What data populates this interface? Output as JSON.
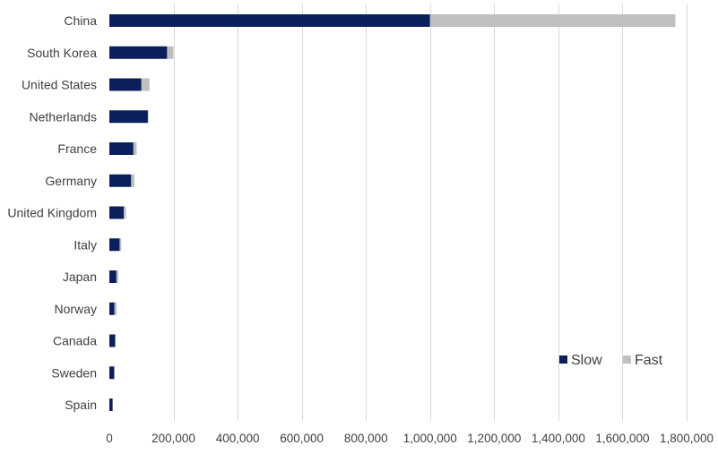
{
  "chart_data": {
    "type": "bar",
    "orientation": "horizontal",
    "stacked": true,
    "categories": [
      "China",
      "South Korea",
      "United States",
      "Netherlands",
      "France",
      "Germany",
      "United Kingdom",
      "Italy",
      "Japan",
      "Norway",
      "Canada",
      "Sweden",
      "Spain"
    ],
    "series": [
      {
        "name": "Slow",
        "color": "#0b1f5b",
        "values": [
          1000000,
          180000,
          100000,
          120000,
          75000,
          68000,
          45000,
          32000,
          22000,
          16000,
          18000,
          15000,
          10000
        ]
      },
      {
        "name": "Fast",
        "color": "#bfbfbf",
        "values": [
          765000,
          20000,
          25000,
          2000,
          10000,
          10000,
          7000,
          5000,
          6000,
          7000,
          2000,
          2000,
          1000
        ]
      }
    ],
    "xlim": [
      0,
      1800000
    ],
    "xticks": [
      0,
      200000,
      400000,
      600000,
      800000,
      1000000,
      1200000,
      1400000,
      1600000,
      1800000
    ],
    "xtick_labels": [
      "0",
      "200,000",
      "400,000",
      "600,000",
      "800,000",
      "1,000,000",
      "1,200,000",
      "1,400,000",
      "1,600,000",
      "1,800,000"
    ],
    "grid": "vertical",
    "legend_position": "right"
  }
}
